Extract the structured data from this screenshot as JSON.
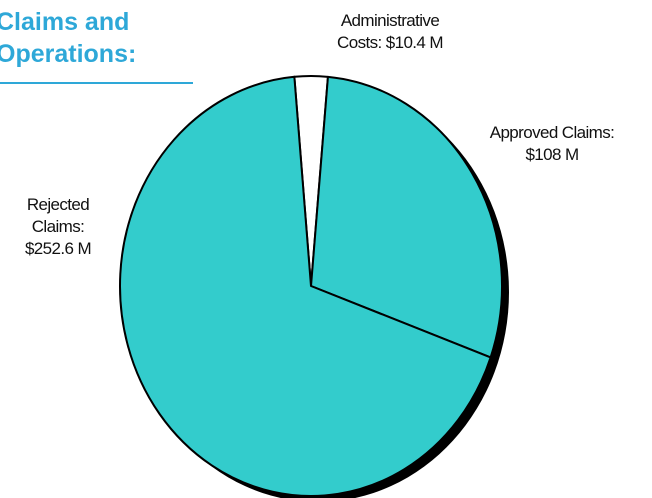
{
  "title_lines": [
    "Claims and",
    "Operations:"
  ],
  "colors": {
    "title": "#2ea8d8",
    "main_slice": "#33cccc",
    "admin_slice": "#ffffff",
    "outline": "#000000",
    "shadow": "#000000"
  },
  "chart_data": {
    "type": "pie",
    "unit": "$M",
    "slices": [
      {
        "name": "Administrative Costs",
        "value": 10.4,
        "label_lines": [
          "Administrative",
          "Costs: $10.4 M"
        ],
        "color": "#ffffff"
      },
      {
        "name": "Approved Claims",
        "value": 108,
        "label_lines": [
          "Approved Claims:",
          "$108 M"
        ],
        "color": "#33cccc"
      },
      {
        "name": "Rejected Claims",
        "value": 252.6,
        "label_lines": [
          "Rejected",
          "Claims:",
          "$252.6 M"
        ],
        "color": "#33cccc"
      }
    ],
    "start_angle_deg": -5,
    "direction": "clockwise",
    "legend": "none",
    "grid": false
  }
}
